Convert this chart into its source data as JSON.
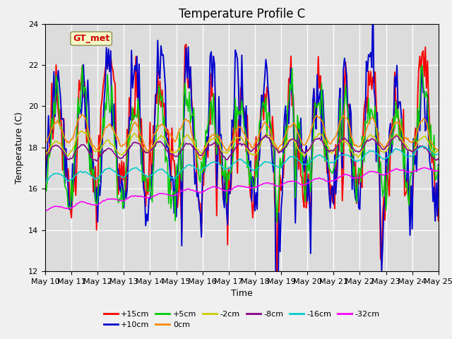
{
  "title": "Temperature Profile C",
  "xlabel": "Time",
  "ylabel": "Temperature (C)",
  "ylim": [
    12,
    24
  ],
  "yticks": [
    12,
    14,
    16,
    18,
    20,
    22,
    24
  ],
  "xtick_days": [
    10,
    11,
    12,
    13,
    14,
    15,
    16,
    17,
    18,
    19,
    20,
    21,
    22,
    23,
    24,
    25
  ],
  "series_labels": [
    "+15cm",
    "+10cm",
    "+5cm",
    "0cm",
    "-2cm",
    "-8cm",
    "-16cm",
    "-32cm"
  ],
  "series_colors": [
    "#ff0000",
    "#0000cc",
    "#00cc00",
    "#ff8800",
    "#cccc00",
    "#880088",
    "#00cccc",
    "#ff00ff"
  ],
  "annotation_text": "GT_met",
  "plot_bg": "#dcdcdc",
  "fig_bg": "#f0f0f0",
  "grid_color": "#ffffff",
  "title_fontsize": 12,
  "axis_fontsize": 9,
  "tick_fontsize": 8,
  "legend_fontsize": 8
}
